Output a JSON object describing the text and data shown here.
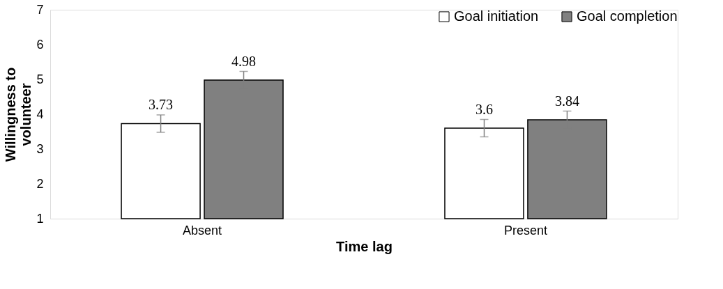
{
  "chart_data": {
    "type": "bar",
    "xlabel": "Time lag",
    "ylabel": "Willingness to volunteer",
    "categories": [
      "Absent",
      "Present"
    ],
    "series": [
      {
        "name": "Goal initiation",
        "color": "#ffffff",
        "values": [
          3.73,
          3.6
        ],
        "errors": [
          0.25,
          0.25
        ]
      },
      {
        "name": "Goal completion",
        "color": "#808080",
        "values": [
          4.98,
          3.84
        ],
        "errors": [
          0.25,
          0.25
        ]
      }
    ],
    "ylim": [
      1,
      7
    ],
    "yticks": [
      1,
      2,
      3,
      4,
      5,
      6,
      7
    ],
    "grid": false,
    "legend": "top right",
    "data_labels": true
  }
}
